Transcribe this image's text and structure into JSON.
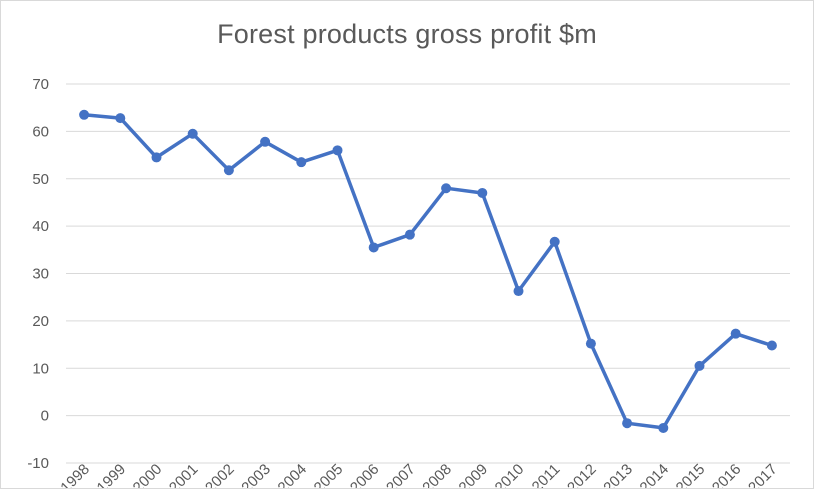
{
  "chart_data": {
    "type": "line",
    "title": "Forest products gross profit $m",
    "xlabel": "",
    "ylabel": "",
    "categories": [
      "1998",
      "1999",
      "2000",
      "2001",
      "2002",
      "2003",
      "2004",
      "2005",
      "2006",
      "2007",
      "2008",
      "2009",
      "2010",
      "2011",
      "2012",
      "2013",
      "2014",
      "2015",
      "2016",
      "2017"
    ],
    "series": [
      {
        "values": [
          63.5,
          62.8,
          54.5,
          59.5,
          51.8,
          57.8,
          53.5,
          56.0,
          35.5,
          38.2,
          48.0,
          47.0,
          26.3,
          36.7,
          15.2,
          -1.6,
          -2.6,
          10.5,
          17.3,
          14.8
        ]
      }
    ],
    "ylim": [
      -10,
      70
    ],
    "yticks": [
      70,
      60,
      50,
      40,
      30,
      20,
      10,
      0,
      -10
    ],
    "grid": true,
    "legend": "none",
    "colors": {
      "line": "#4472c4",
      "grid": "#d9d9d9",
      "text": "#595959",
      "negative_tick": "#ff0000"
    }
  }
}
